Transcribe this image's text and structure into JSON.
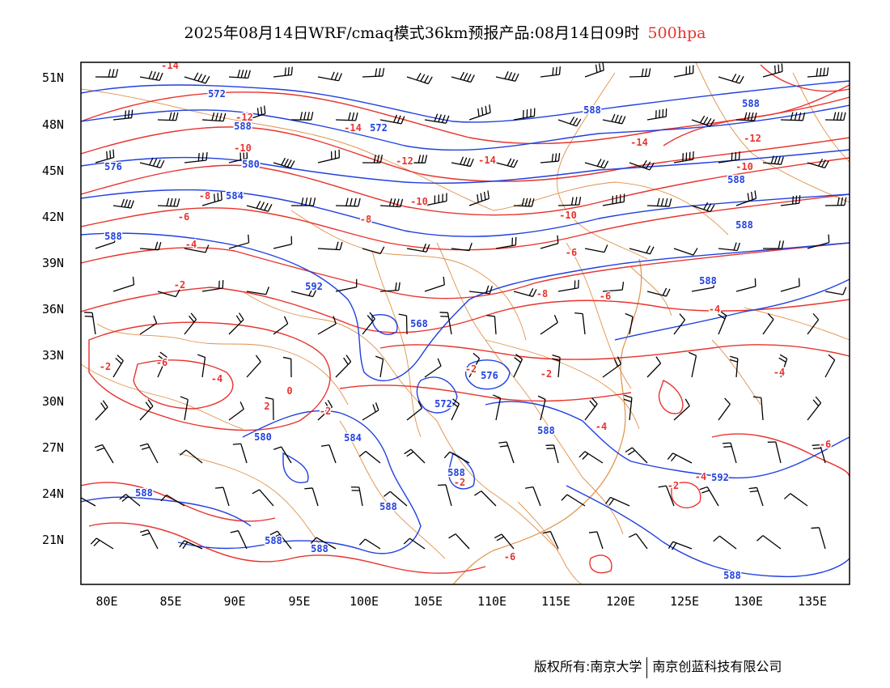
{
  "title": {
    "main": "2025年08月14日WRF/cmaq模式36km预报产品:08月14日09时",
    "level": "500hpa"
  },
  "axes": {
    "lat_labels": [
      "51N",
      "48N",
      "45N",
      "42N",
      "39N",
      "36N",
      "33N",
      "30N",
      "27N",
      "24N",
      "21N"
    ],
    "lon_labels": [
      "80E",
      "85E",
      "90E",
      "95E",
      "100E",
      "105E",
      "110E",
      "115E",
      "120E",
      "125E",
      "130E",
      "135E"
    ]
  },
  "colors": {
    "height_contour": "#2040e0",
    "temperature_contour": "#e8342e",
    "borders": "#e09048",
    "wind_barb": "#000000",
    "frame": "#000000"
  },
  "map_data": {
    "height_contour_labels": [
      "572",
      "588",
      "576",
      "580",
      "584",
      "588",
      "592",
      "568",
      "576",
      "572",
      "580",
      "584",
      "588",
      "588",
      "588",
      "588",
      "588",
      "588",
      "588",
      "588",
      "588",
      "592",
      "588",
      "588",
      "588",
      "572"
    ],
    "temperature_contour_labels": [
      "-14",
      "-12",
      "-10",
      "-8",
      "-6",
      "-4",
      "-2",
      "-6",
      "-4",
      "-2",
      "0",
      "2",
      "-2",
      "-14",
      "-14",
      "-12",
      "-10",
      "-8",
      "-10",
      "-6",
      "-8",
      "-6",
      "-4",
      "-2",
      "-2",
      "-4",
      "-6",
      "-10",
      "-12",
      "-14",
      "-4",
      "-2",
      "-4",
      "-2",
      "-6"
    ]
  },
  "footer": {
    "copyright_label": "版权所有:",
    "org1": "南京大学",
    "org2": "南京创蓝科技有限公司"
  }
}
